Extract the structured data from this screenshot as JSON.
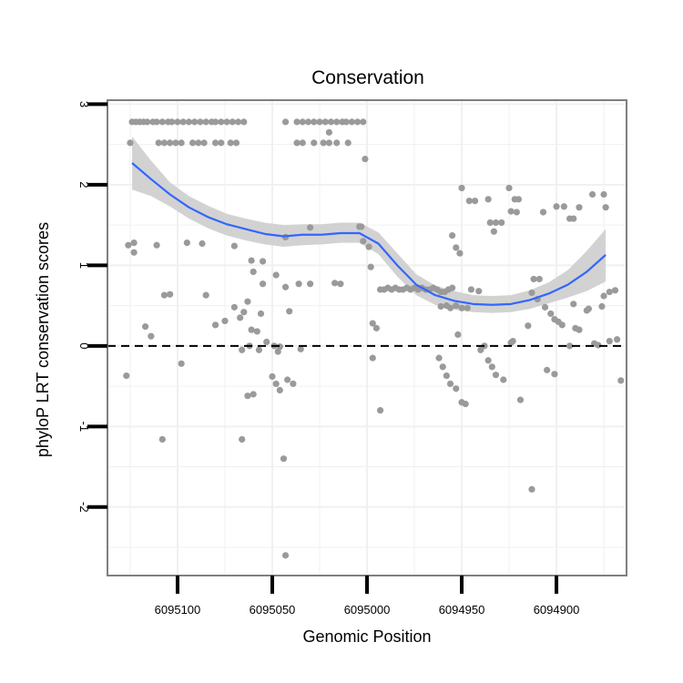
{
  "chart_data": {
    "type": "scatter",
    "title": "Conservation",
    "xlabel": "Genomic Position",
    "ylabel": "phyloP LRT conservation scores",
    "x_reversed": true,
    "xlim": [
      6095137,
      6094863
    ],
    "ylim": [
      -2.85,
      3.05
    ],
    "x_ticks": [
      6095100,
      6095050,
      6095000,
      6094950,
      6094900
    ],
    "x_tick_labels": [
      "6095100",
      "6095050",
      "6095000",
      "6094950",
      "6094900"
    ],
    "y_ticks": [
      -2,
      -1,
      0,
      1,
      2,
      3
    ],
    "y_tick_labels": [
      "-2",
      "-1",
      "0",
      "1",
      "2",
      "3"
    ],
    "grid": true,
    "reference_line": {
      "y": 0,
      "style": "dashed",
      "color": "#000000"
    },
    "colors": {
      "points": "#9a9a9a",
      "smooth_line": "#3366ff",
      "confidence_band": "#d0d0d0",
      "panel_border": "#7f7f7f",
      "grid": "#f0f0f0"
    },
    "series": [
      {
        "type": "scatter",
        "points": [
          [
            6095124,
            2.78
          ],
          [
            6095122,
            2.78
          ],
          [
            6095120,
            2.78
          ],
          [
            6095118,
            2.78
          ],
          [
            6095116,
            2.78
          ],
          [
            6095113,
            2.78
          ],
          [
            6095111,
            2.78
          ],
          [
            6095108,
            2.78
          ],
          [
            6095105,
            2.78
          ],
          [
            6095103,
            2.78
          ],
          [
            6095100,
            2.78
          ],
          [
            6095097,
            2.78
          ],
          [
            6095094,
            2.78
          ],
          [
            6095091,
            2.78
          ],
          [
            6095088,
            2.78
          ],
          [
            6095085,
            2.78
          ],
          [
            6095082,
            2.78
          ],
          [
            6095080,
            2.78
          ],
          [
            6095077,
            2.78
          ],
          [
            6095074,
            2.78
          ],
          [
            6095071,
            2.78
          ],
          [
            6095068,
            2.78
          ],
          [
            6095065,
            2.78
          ],
          [
            6095043,
            2.78
          ],
          [
            6095037,
            2.78
          ],
          [
            6095034,
            2.78
          ],
          [
            6095031,
            2.78
          ],
          [
            6095028,
            2.78
          ],
          [
            6095025,
            2.78
          ],
          [
            6095022,
            2.78
          ],
          [
            6095019,
            2.78
          ],
          [
            6095016,
            2.78
          ],
          [
            6095013,
            2.78
          ],
          [
            6095011,
            2.78
          ],
          [
            6095008,
            2.78
          ],
          [
            6095005,
            2.78
          ],
          [
            6095002,
            2.78
          ],
          [
            6095125,
            2.52
          ],
          [
            6095110,
            2.52
          ],
          [
            6095107,
            2.52
          ],
          [
            6095104,
            2.52
          ],
          [
            6095101,
            2.52
          ],
          [
            6095098,
            2.52
          ],
          [
            6095092,
            2.52
          ],
          [
            6095089,
            2.52
          ],
          [
            6095086,
            2.52
          ],
          [
            6095080,
            2.52
          ],
          [
            6095077,
            2.52
          ],
          [
            6095072,
            2.52
          ],
          [
            6095069,
            2.52
          ],
          [
            6095037,
            2.52
          ],
          [
            6095034,
            2.52
          ],
          [
            6095028,
            2.52
          ],
          [
            6095023,
            2.52
          ],
          [
            6095020,
            2.52
          ],
          [
            6095016,
            2.52
          ],
          [
            6095010,
            2.52
          ],
          [
            6095020,
            2.65
          ],
          [
            6095001,
            2.32
          ],
          [
            6095126,
            1.25
          ],
          [
            6095123,
            1.28
          ],
          [
            6095111,
            1.25
          ],
          [
            6095095,
            1.28
          ],
          [
            6095087,
            1.27
          ],
          [
            6095070,
            1.24
          ],
          [
            6095030,
            1.47
          ],
          [
            6095043,
            1.35
          ],
          [
            6095004,
            1.48
          ],
          [
            6095002,
            1.3
          ],
          [
            6094999,
            1.23
          ],
          [
            6094950,
            1.96
          ],
          [
            6094946,
            1.8
          ],
          [
            6094943,
            1.8
          ],
          [
            6094936,
            1.82
          ],
          [
            6094925,
            1.96
          ],
          [
            6094922,
            1.82
          ],
          [
            6094920,
            1.82
          ],
          [
            6094924,
            1.67
          ],
          [
            6094921,
            1.66
          ],
          [
            6094935,
            1.53
          ],
          [
            6094932,
            1.53
          ],
          [
            6094929,
            1.53
          ],
          [
            6094933,
            1.42
          ],
          [
            6094907,
            1.66
          ],
          [
            6094900,
            1.73
          ],
          [
            6094896,
            1.73
          ],
          [
            6094893,
            1.58
          ],
          [
            6094891,
            1.58
          ],
          [
            6094888,
            1.72
          ],
          [
            6094881,
            1.88
          ],
          [
            6094875,
            1.88
          ],
          [
            6094874,
            1.72
          ],
          [
            6094912,
            0.83
          ],
          [
            6094909,
            0.83
          ],
          [
            6094955,
            1.37
          ],
          [
            6094953,
            1.22
          ],
          [
            6094951,
            1.15
          ],
          [
            6095123,
            1.16
          ],
          [
            6095117,
            0.24
          ],
          [
            6095114,
            0.12
          ],
          [
            6095107,
            0.63
          ],
          [
            6095104,
            0.64
          ],
          [
            6095085,
            0.63
          ],
          [
            6095080,
            0.26
          ],
          [
            6095075,
            0.31
          ],
          [
            6095061,
            1.06
          ],
          [
            6095055,
            1.05
          ],
          [
            6095060,
            0.92
          ],
          [
            6095055,
            0.77
          ],
          [
            6095048,
            0.88
          ],
          [
            6095043,
            0.73
          ],
          [
            6095036,
            0.77
          ],
          [
            6095041,
            0.43
          ],
          [
            6095030,
            0.77
          ],
          [
            6095017,
            0.78
          ],
          [
            6095014,
            0.77
          ],
          [
            6094998,
            0.98
          ],
          [
            6095070,
            0.48
          ],
          [
            6095067,
            0.35
          ],
          [
            6095065,
            0.42
          ],
          [
            6095063,
            0.55
          ],
          [
            6095061,
            0.2
          ],
          [
            6095058,
            0.18
          ],
          [
            6095056,
            0.4
          ],
          [
            6095066,
            -0.05
          ],
          [
            6095062,
            0.0
          ],
          [
            6095057,
            -0.05
          ],
          [
            6095053,
            0.05
          ],
          [
            6095049,
            0.0
          ],
          [
            6095046,
            -0.01
          ],
          [
            6095060,
            -0.6
          ],
          [
            6095063,
            -0.62
          ],
          [
            6095047,
            -0.07
          ],
          [
            6095050,
            -0.38
          ],
          [
            6095048,
            -0.47
          ],
          [
            6095046,
            -0.55
          ],
          [
            6095042,
            -0.42
          ],
          [
            6095039,
            -0.47
          ],
          [
            6095035,
            -0.04
          ],
          [
            6095044,
            -1.4
          ],
          [
            6095043,
            -2.6
          ],
          [
            6095066,
            -1.16
          ],
          [
            6095108,
            -1.16
          ],
          [
            6095098,
            -0.22
          ],
          [
            6095127,
            -0.37
          ],
          [
            6095003,
            1.48
          ],
          [
            6094997,
            0.28
          ],
          [
            6094995,
            0.22
          ],
          [
            6094997,
            -0.15
          ],
          [
            6094993,
            -0.8
          ],
          [
            6094993,
            0.7
          ],
          [
            6094991,
            0.7
          ],
          [
            6094989,
            0.72
          ],
          [
            6094987,
            0.7
          ],
          [
            6094985,
            0.72
          ],
          [
            6094983,
            0.7
          ],
          [
            6094981,
            0.7
          ],
          [
            6094979,
            0.72
          ],
          [
            6094977,
            0.7
          ],
          [
            6094975,
            0.72
          ],
          [
            6094973,
            0.7
          ],
          [
            6094971,
            0.72
          ],
          [
            6094969,
            0.7
          ],
          [
            6094967,
            0.7
          ],
          [
            6094965,
            0.72
          ],
          [
            6094963,
            0.7
          ],
          [
            6094961,
            0.67
          ],
          [
            6094959,
            0.67
          ],
          [
            6094957,
            0.7
          ],
          [
            6094955,
            0.72
          ],
          [
            6094961,
            0.49
          ],
          [
            6094958,
            0.5
          ],
          [
            6094956,
            0.47
          ],
          [
            6094953,
            0.5
          ],
          [
            6094950,
            0.47
          ],
          [
            6094947,
            0.47
          ],
          [
            6094945,
            0.7
          ],
          [
            6094941,
            0.68
          ],
          [
            6094962,
            -0.15
          ],
          [
            6094960,
            -0.26
          ],
          [
            6094958,
            -0.37
          ],
          [
            6094956,
            -0.47
          ],
          [
            6094953,
            -0.53
          ],
          [
            6094950,
            -0.7
          ],
          [
            6094948,
            -0.72
          ],
          [
            6094952,
            0.14
          ],
          [
            6094940,
            -0.05
          ],
          [
            6094938,
            0.0
          ],
          [
            6094936,
            -0.18
          ],
          [
            6094934,
            -0.26
          ],
          [
            6094932,
            -0.36
          ],
          [
            6094928,
            -0.42
          ],
          [
            6094924,
            0.04
          ],
          [
            6094923,
            0.06
          ],
          [
            6094919,
            -0.67
          ],
          [
            6094915,
            0.25
          ],
          [
            6094913,
            0.66
          ],
          [
            6094910,
            0.58
          ],
          [
            6094906,
            0.48
          ],
          [
            6094903,
            0.4
          ],
          [
            6094901,
            0.33
          ],
          [
            6094899,
            0.3
          ],
          [
            6094897,
            0.26
          ],
          [
            6094893,
            0.0
          ],
          [
            6094891,
            0.52
          ],
          [
            6094888,
            0.2
          ],
          [
            6094884,
            0.44
          ],
          [
            6094880,
            0.03
          ],
          [
            6094878,
            0.01
          ],
          [
            6094875,
            0.62
          ],
          [
            6094872,
            0.67
          ],
          [
            6094869,
            0.69
          ],
          [
            6094868,
            0.08
          ],
          [
            6094866,
            -0.43
          ],
          [
            6094905,
            -0.3
          ],
          [
            6094901,
            -0.35
          ],
          [
            6094913,
            -1.78
          ],
          [
            6094883,
            0.46
          ],
          [
            6094876,
            0.49
          ],
          [
            6094890,
            0.22
          ],
          [
            6094872,
            0.06
          ]
        ]
      },
      {
        "type": "smooth_line",
        "x": [
          6095124,
          6095114,
          6095104,
          6095094,
          6095084,
          6095074,
          6095064,
          6095054,
          6095044,
          6095034,
          6095024,
          6095014,
          6095004,
          6094994,
          6094984,
          6094974,
          6094964,
          6094954,
          6094944,
          6094934,
          6094924,
          6094914,
          6094904,
          6094894,
          6094884,
          6094874
        ],
        "y": [
          2.27,
          2.07,
          1.88,
          1.72,
          1.6,
          1.51,
          1.45,
          1.39,
          1.36,
          1.38,
          1.38,
          1.4,
          1.4,
          1.27,
          1.0,
          0.76,
          0.63,
          0.56,
          0.52,
          0.51,
          0.52,
          0.57,
          0.65,
          0.76,
          0.92,
          1.13
        ],
        "ci_lower": [
          1.94,
          1.86,
          1.73,
          1.58,
          1.46,
          1.37,
          1.31,
          1.26,
          1.23,
          1.25,
          1.26,
          1.28,
          1.28,
          1.14,
          0.86,
          0.63,
          0.51,
          0.45,
          0.42,
          0.41,
          0.42,
          0.46,
          0.53,
          0.6,
          0.68,
          0.8
        ],
        "ci_upper": [
          2.6,
          2.3,
          2.03,
          1.86,
          1.74,
          1.64,
          1.58,
          1.53,
          1.5,
          1.51,
          1.51,
          1.53,
          1.53,
          1.41,
          1.15,
          0.89,
          0.75,
          0.68,
          0.63,
          0.62,
          0.63,
          0.69,
          0.79,
          0.94,
          1.18,
          1.45
        ]
      }
    ]
  }
}
